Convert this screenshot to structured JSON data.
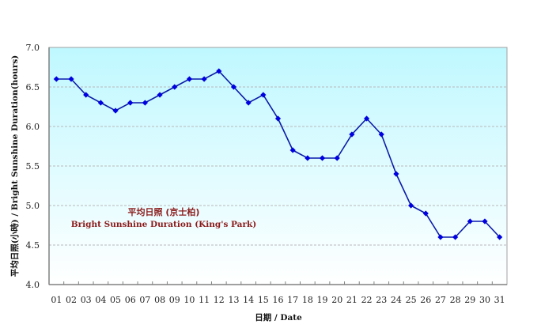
{
  "chart_data": {
    "type": "line",
    "title": "",
    "annotation_cn": "平均日照 (京士柏)",
    "annotation_en": "Bright Sunshine Duration (King's Park)",
    "xlabel": "日期 / Date",
    "ylabel": "平均日照(小時) / Bright Sunshine Duration(hours)",
    "ylim": [
      4.0,
      7.0
    ],
    "yticks": [
      "4.0",
      "4.5",
      "5.0",
      "5.5",
      "6.0",
      "6.5",
      "7.0"
    ],
    "grid": "horizontal dashed",
    "legend": "none",
    "categories": [
      "01",
      "02",
      "03",
      "04",
      "05",
      "06",
      "07",
      "08",
      "09",
      "10",
      "11",
      "12",
      "13",
      "14",
      "15",
      "16",
      "17",
      "18",
      "19",
      "20",
      "21",
      "22",
      "23",
      "24",
      "25",
      "26",
      "27",
      "28",
      "29",
      "30",
      "31"
    ],
    "series": [
      {
        "name": "Bright Sunshine Duration (King's Park)",
        "color": "#0000cc",
        "marker": "diamond",
        "values": [
          6.6,
          6.6,
          6.4,
          6.3,
          6.2,
          6.3,
          6.3,
          6.4,
          6.5,
          6.6,
          6.6,
          6.7,
          6.5,
          6.3,
          6.4,
          6.1,
          5.7,
          5.6,
          5.6,
          5.6,
          5.9,
          6.1,
          5.9,
          5.4,
          5.0,
          4.9,
          4.6,
          4.6,
          4.8,
          4.8,
          4.6
        ]
      }
    ]
  },
  "colors": {
    "plot_top": "#bff8ff",
    "plot_bottom": "#ffffff",
    "line": "#0a1aa8",
    "marker": "#0000e0",
    "annotation": "#8b1a1a",
    "grid": "#b8b8b8",
    "axis": "#808080"
  }
}
